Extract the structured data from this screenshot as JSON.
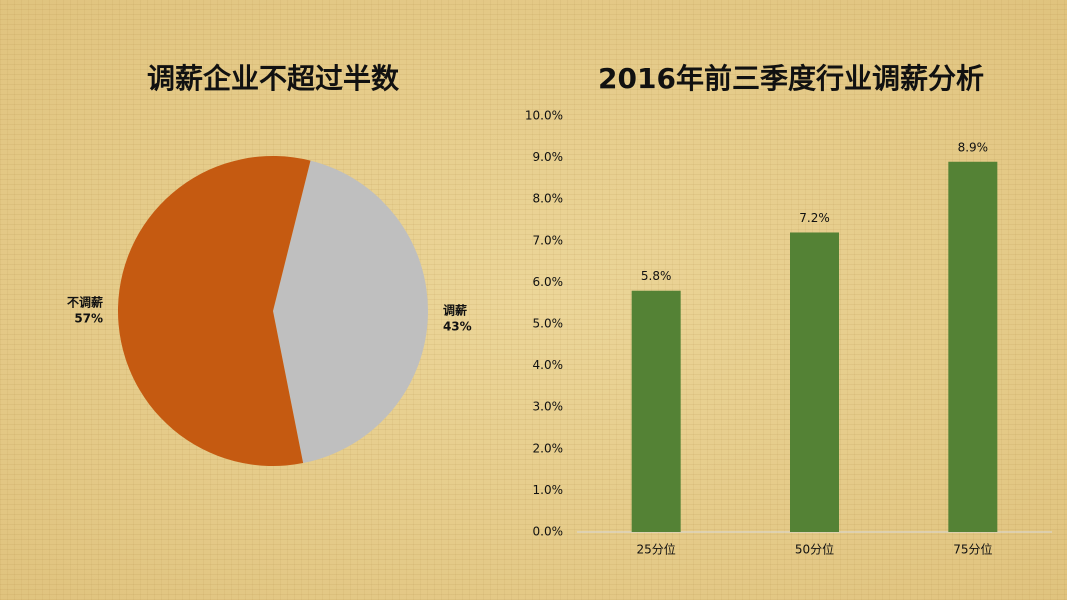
{
  "chart_data": [
    {
      "type": "pie",
      "title": "调薪企业不超过半数",
      "categories": [
        "调薪",
        "不调薪"
      ],
      "values": [
        43,
        57
      ],
      "value_labels": [
        "43%",
        "57%"
      ],
      "colors": [
        "#bfbfbf",
        "#c55a11"
      ]
    },
    {
      "type": "bar",
      "title": "2016年前三季度行业调薪分析",
      "categories": [
        "25分位",
        "50分位",
        "75分位"
      ],
      "values": [
        5.8,
        7.2,
        8.9
      ],
      "value_labels": [
        "5.8%",
        "7.2%",
        "8.9%"
      ],
      "color": "#548235",
      "ylim": [
        0,
        10
      ],
      "yticks": [
        {
          "value": 0,
          "label": "0.0%"
        },
        {
          "value": 1,
          "label": "1.0%"
        },
        {
          "value": 2,
          "label": "2.0%"
        },
        {
          "value": 3,
          "label": "3.0%"
        },
        {
          "value": 4,
          "label": "4.0%"
        },
        {
          "value": 5,
          "label": "5.0%"
        },
        {
          "value": 6,
          "label": "6.0%"
        },
        {
          "value": 7,
          "label": "7.0%"
        },
        {
          "value": 8,
          "label": "8.0%"
        },
        {
          "value": 9,
          "label": "9.0%"
        },
        {
          "value": 10,
          "label": "10.0%"
        }
      ]
    }
  ]
}
